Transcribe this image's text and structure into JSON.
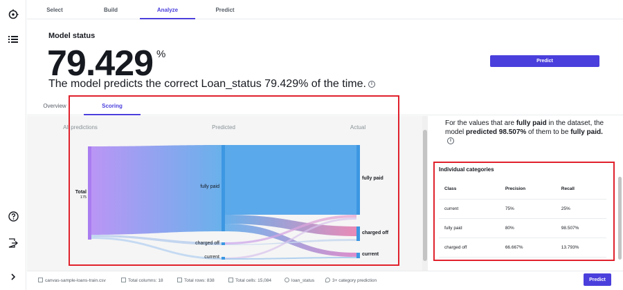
{
  "tabs": [
    {
      "label": "Select"
    },
    {
      "label": "Build"
    },
    {
      "label": "Analyze"
    },
    {
      "label": "Predict"
    }
  ],
  "header": {
    "title": "Model status",
    "accuracy_value": "79.429",
    "accuracy_unit": "%",
    "sentence": "The model predicts the correct Loan_status 79.429% of the time.",
    "info_glyph": "i",
    "predict_label": "Predict"
  },
  "subtabs": [
    {
      "label": "Overview"
    },
    {
      "label": "Scoring"
    }
  ],
  "sankey": {
    "col_labels": [
      "All predictions",
      "Predicted",
      "Actual"
    ],
    "total_label": "Total",
    "total_count": "175",
    "predicted_labels": [
      "fully paid",
      "charged off",
      "current"
    ],
    "actual_labels": [
      "fully paid",
      "charged off",
      "current"
    ]
  },
  "description": {
    "prefix": "For the values that are ",
    "category": "fully paid",
    "middle": " in the dataset, the model ",
    "emphasis": "predicted 98.507%",
    "suffix": " of them to be ",
    "category_end": "fully paid."
  },
  "categories": {
    "title": "Individual categories",
    "columns": [
      "Class",
      "Precision",
      "Recall"
    ],
    "rows": [
      {
        "class": "current",
        "precision": "75%",
        "recall": "25%"
      },
      {
        "class": "fully paid",
        "precision": "80%",
        "recall": "98.507%"
      },
      {
        "class": "charged off",
        "precision": "66.667%",
        "recall": "13.793%"
      }
    ]
  },
  "footer": {
    "dataset": "canvas-sample-loans-train.csv",
    "columns": "Total columns: 18",
    "rows": "Total rows: 838",
    "cells": "Total cells: 15,084",
    "target": "loan_status",
    "model_type": "3+ category prediction",
    "predict_label": "Predict"
  },
  "colors": {
    "accent": "#4a3fdc",
    "highlight": "#e0202b",
    "sankey_blue": "#5aa9ea",
    "sankey_purple": "#b38bf5",
    "sankey_pink": "#e77fb0"
  }
}
